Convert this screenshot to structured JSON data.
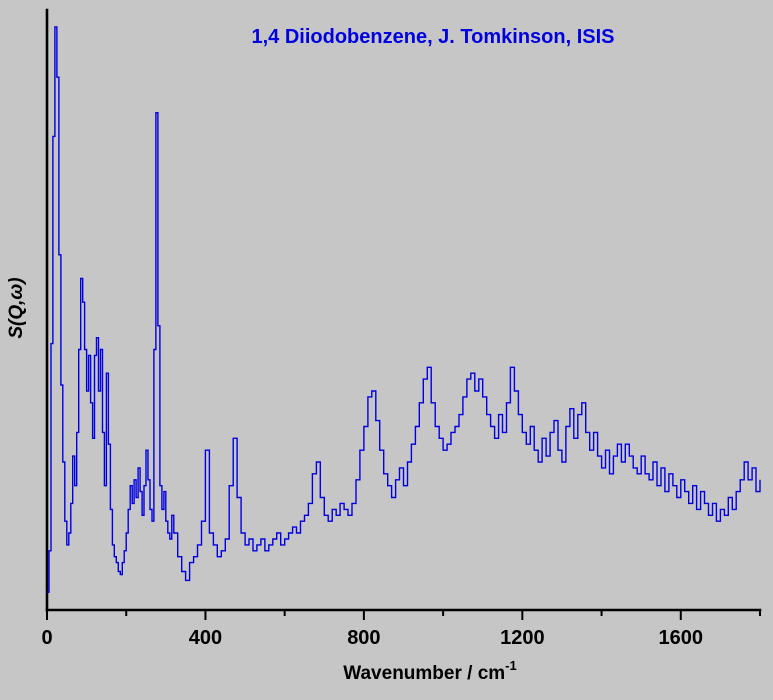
{
  "title": "1,4 Diiodobenzene, J. Tomkinson, ISIS",
  "colors": {
    "background": "#c6c6c6",
    "accent_blue": "#0000e0",
    "line_blue": "#0000e0",
    "axis_black": "#000000"
  },
  "axes": {
    "x_label_main": "Wavenumber / cm",
    "x_label_superscript": "-1",
    "y_label": "S(Q,ω)",
    "x_ticks": [
      0,
      400,
      800,
      1200,
      1600
    ],
    "x_minor_ticks": [
      200,
      600,
      1000,
      1400,
      1800
    ],
    "x_range": [
      0,
      1800
    ]
  },
  "chart_data": {
    "type": "line",
    "style": "step-histogram",
    "title": "1,4 Diiodobenzene, J. Tomkinson, ISIS",
    "xlabel": "Wavenumber / cm^-1",
    "ylabel": "S(Q,ω)",
    "x_range": [
      0,
      1800
    ],
    "y_range": [
      0,
      1
    ],
    "y_units": "relative intensity (no tick labels shown)",
    "legend": "none",
    "grid": false,
    "points": [
      [
        0,
        0.03
      ],
      [
        5,
        0.1
      ],
      [
        10,
        0.45
      ],
      [
        15,
        0.8
      ],
      [
        20,
        0.985
      ],
      [
        25,
        0.9
      ],
      [
        30,
        0.6
      ],
      [
        35,
        0.38
      ],
      [
        40,
        0.25
      ],
      [
        45,
        0.15
      ],
      [
        50,
        0.11
      ],
      [
        55,
        0.13
      ],
      [
        60,
        0.18
      ],
      [
        65,
        0.26
      ],
      [
        70,
        0.21
      ],
      [
        75,
        0.3
      ],
      [
        80,
        0.44
      ],
      [
        85,
        0.56
      ],
      [
        90,
        0.52
      ],
      [
        95,
        0.44
      ],
      [
        100,
        0.37
      ],
      [
        105,
        0.43
      ],
      [
        110,
        0.35
      ],
      [
        115,
        0.29
      ],
      [
        120,
        0.43
      ],
      [
        125,
        0.46
      ],
      [
        130,
        0.37
      ],
      [
        135,
        0.44
      ],
      [
        140,
        0.3
      ],
      [
        145,
        0.21
      ],
      [
        150,
        0.4
      ],
      [
        155,
        0.28
      ],
      [
        160,
        0.17
      ],
      [
        165,
        0.11
      ],
      [
        170,
        0.09
      ],
      [
        175,
        0.08
      ],
      [
        180,
        0.065
      ],
      [
        185,
        0.06
      ],
      [
        190,
        0.08
      ],
      [
        195,
        0.1
      ],
      [
        200,
        0.13
      ],
      [
        205,
        0.17
      ],
      [
        210,
        0.21
      ],
      [
        215,
        0.18
      ],
      [
        220,
        0.22
      ],
      [
        225,
        0.19
      ],
      [
        230,
        0.24
      ],
      [
        235,
        0.2
      ],
      [
        240,
        0.16
      ],
      [
        245,
        0.21
      ],
      [
        250,
        0.27
      ],
      [
        255,
        0.22
      ],
      [
        260,
        0.17
      ],
      [
        265,
        0.15
      ],
      [
        270,
        0.44
      ],
      [
        275,
        0.84
      ],
      [
        280,
        0.48
      ],
      [
        285,
        0.21
      ],
      [
        290,
        0.17
      ],
      [
        295,
        0.2
      ],
      [
        300,
        0.15
      ],
      [
        305,
        0.13
      ],
      [
        310,
        0.12
      ],
      [
        315,
        0.16
      ],
      [
        320,
        0.13
      ],
      [
        330,
        0.09
      ],
      [
        340,
        0.065
      ],
      [
        350,
        0.05
      ],
      [
        360,
        0.08
      ],
      [
        370,
        0.09
      ],
      [
        380,
        0.11
      ],
      [
        390,
        0.15
      ],
      [
        400,
        0.27
      ],
      [
        410,
        0.13
      ],
      [
        420,
        0.11
      ],
      [
        430,
        0.09
      ],
      [
        440,
        0.1
      ],
      [
        450,
        0.12
      ],
      [
        460,
        0.21
      ],
      [
        470,
        0.29
      ],
      [
        480,
        0.19
      ],
      [
        490,
        0.13
      ],
      [
        500,
        0.11
      ],
      [
        510,
        0.12
      ],
      [
        520,
        0.1
      ],
      [
        530,
        0.11
      ],
      [
        540,
        0.12
      ],
      [
        550,
        0.1
      ],
      [
        560,
        0.11
      ],
      [
        570,
        0.12
      ],
      [
        580,
        0.13
      ],
      [
        590,
        0.11
      ],
      [
        600,
        0.12
      ],
      [
        610,
        0.13
      ],
      [
        620,
        0.14
      ],
      [
        630,
        0.13
      ],
      [
        640,
        0.15
      ],
      [
        650,
        0.16
      ],
      [
        660,
        0.18
      ],
      [
        670,
        0.23
      ],
      [
        680,
        0.25
      ],
      [
        690,
        0.19
      ],
      [
        700,
        0.16
      ],
      [
        710,
        0.15
      ],
      [
        720,
        0.17
      ],
      [
        730,
        0.16
      ],
      [
        740,
        0.18
      ],
      [
        750,
        0.17
      ],
      [
        760,
        0.16
      ],
      [
        770,
        0.18
      ],
      [
        780,
        0.22
      ],
      [
        790,
        0.27
      ],
      [
        800,
        0.31
      ],
      [
        810,
        0.36
      ],
      [
        820,
        0.37
      ],
      [
        830,
        0.32
      ],
      [
        840,
        0.27
      ],
      [
        850,
        0.23
      ],
      [
        860,
        0.21
      ],
      [
        870,
        0.19
      ],
      [
        880,
        0.22
      ],
      [
        890,
        0.24
      ],
      [
        900,
        0.21
      ],
      [
        910,
        0.25
      ],
      [
        920,
        0.28
      ],
      [
        930,
        0.31
      ],
      [
        940,
        0.35
      ],
      [
        950,
        0.39
      ],
      [
        960,
        0.41
      ],
      [
        970,
        0.35
      ],
      [
        980,
        0.31
      ],
      [
        990,
        0.29
      ],
      [
        1000,
        0.27
      ],
      [
        1010,
        0.28
      ],
      [
        1020,
        0.3
      ],
      [
        1030,
        0.31
      ],
      [
        1040,
        0.33
      ],
      [
        1050,
        0.36
      ],
      [
        1060,
        0.39
      ],
      [
        1070,
        0.4
      ],
      [
        1080,
        0.37
      ],
      [
        1090,
        0.39
      ],
      [
        1100,
        0.36
      ],
      [
        1110,
        0.33
      ],
      [
        1120,
        0.31
      ],
      [
        1130,
        0.29
      ],
      [
        1140,
        0.33
      ],
      [
        1150,
        0.3
      ],
      [
        1160,
        0.35
      ],
      [
        1170,
        0.41
      ],
      [
        1180,
        0.37
      ],
      [
        1190,
        0.33
      ],
      [
        1200,
        0.3
      ],
      [
        1210,
        0.28
      ],
      [
        1220,
        0.31
      ],
      [
        1230,
        0.27
      ],
      [
        1240,
        0.25
      ],
      [
        1250,
        0.29
      ],
      [
        1260,
        0.26
      ],
      [
        1270,
        0.3
      ],
      [
        1280,
        0.32
      ],
      [
        1290,
        0.27
      ],
      [
        1300,
        0.25
      ],
      [
        1310,
        0.31
      ],
      [
        1320,
        0.34
      ],
      [
        1330,
        0.29
      ],
      [
        1340,
        0.33
      ],
      [
        1350,
        0.35
      ],
      [
        1360,
        0.3
      ],
      [
        1370,
        0.27
      ],
      [
        1380,
        0.3
      ],
      [
        1390,
        0.26
      ],
      [
        1400,
        0.24
      ],
      [
        1410,
        0.27
      ],
      [
        1420,
        0.23
      ],
      [
        1430,
        0.26
      ],
      [
        1440,
        0.28
      ],
      [
        1450,
        0.25
      ],
      [
        1460,
        0.28
      ],
      [
        1470,
        0.26
      ],
      [
        1480,
        0.24
      ],
      [
        1490,
        0.23
      ],
      [
        1500,
        0.26
      ],
      [
        1510,
        0.23
      ],
      [
        1520,
        0.22
      ],
      [
        1530,
        0.25
      ],
      [
        1540,
        0.21
      ],
      [
        1550,
        0.24
      ],
      [
        1560,
        0.2
      ],
      [
        1570,
        0.23
      ],
      [
        1580,
        0.21
      ],
      [
        1590,
        0.19
      ],
      [
        1600,
        0.22
      ],
      [
        1610,
        0.2
      ],
      [
        1620,
        0.18
      ],
      [
        1630,
        0.21
      ],
      [
        1640,
        0.17
      ],
      [
        1650,
        0.2
      ],
      [
        1660,
        0.18
      ],
      [
        1670,
        0.16
      ],
      [
        1680,
        0.18
      ],
      [
        1690,
        0.15
      ],
      [
        1700,
        0.17
      ],
      [
        1710,
        0.16
      ],
      [
        1720,
        0.19
      ],
      [
        1730,
        0.17
      ],
      [
        1740,
        0.2
      ],
      [
        1750,
        0.22
      ],
      [
        1760,
        0.25
      ],
      [
        1770,
        0.22
      ],
      [
        1780,
        0.24
      ],
      [
        1790,
        0.2
      ],
      [
        1800,
        0.22
      ]
    ]
  }
}
